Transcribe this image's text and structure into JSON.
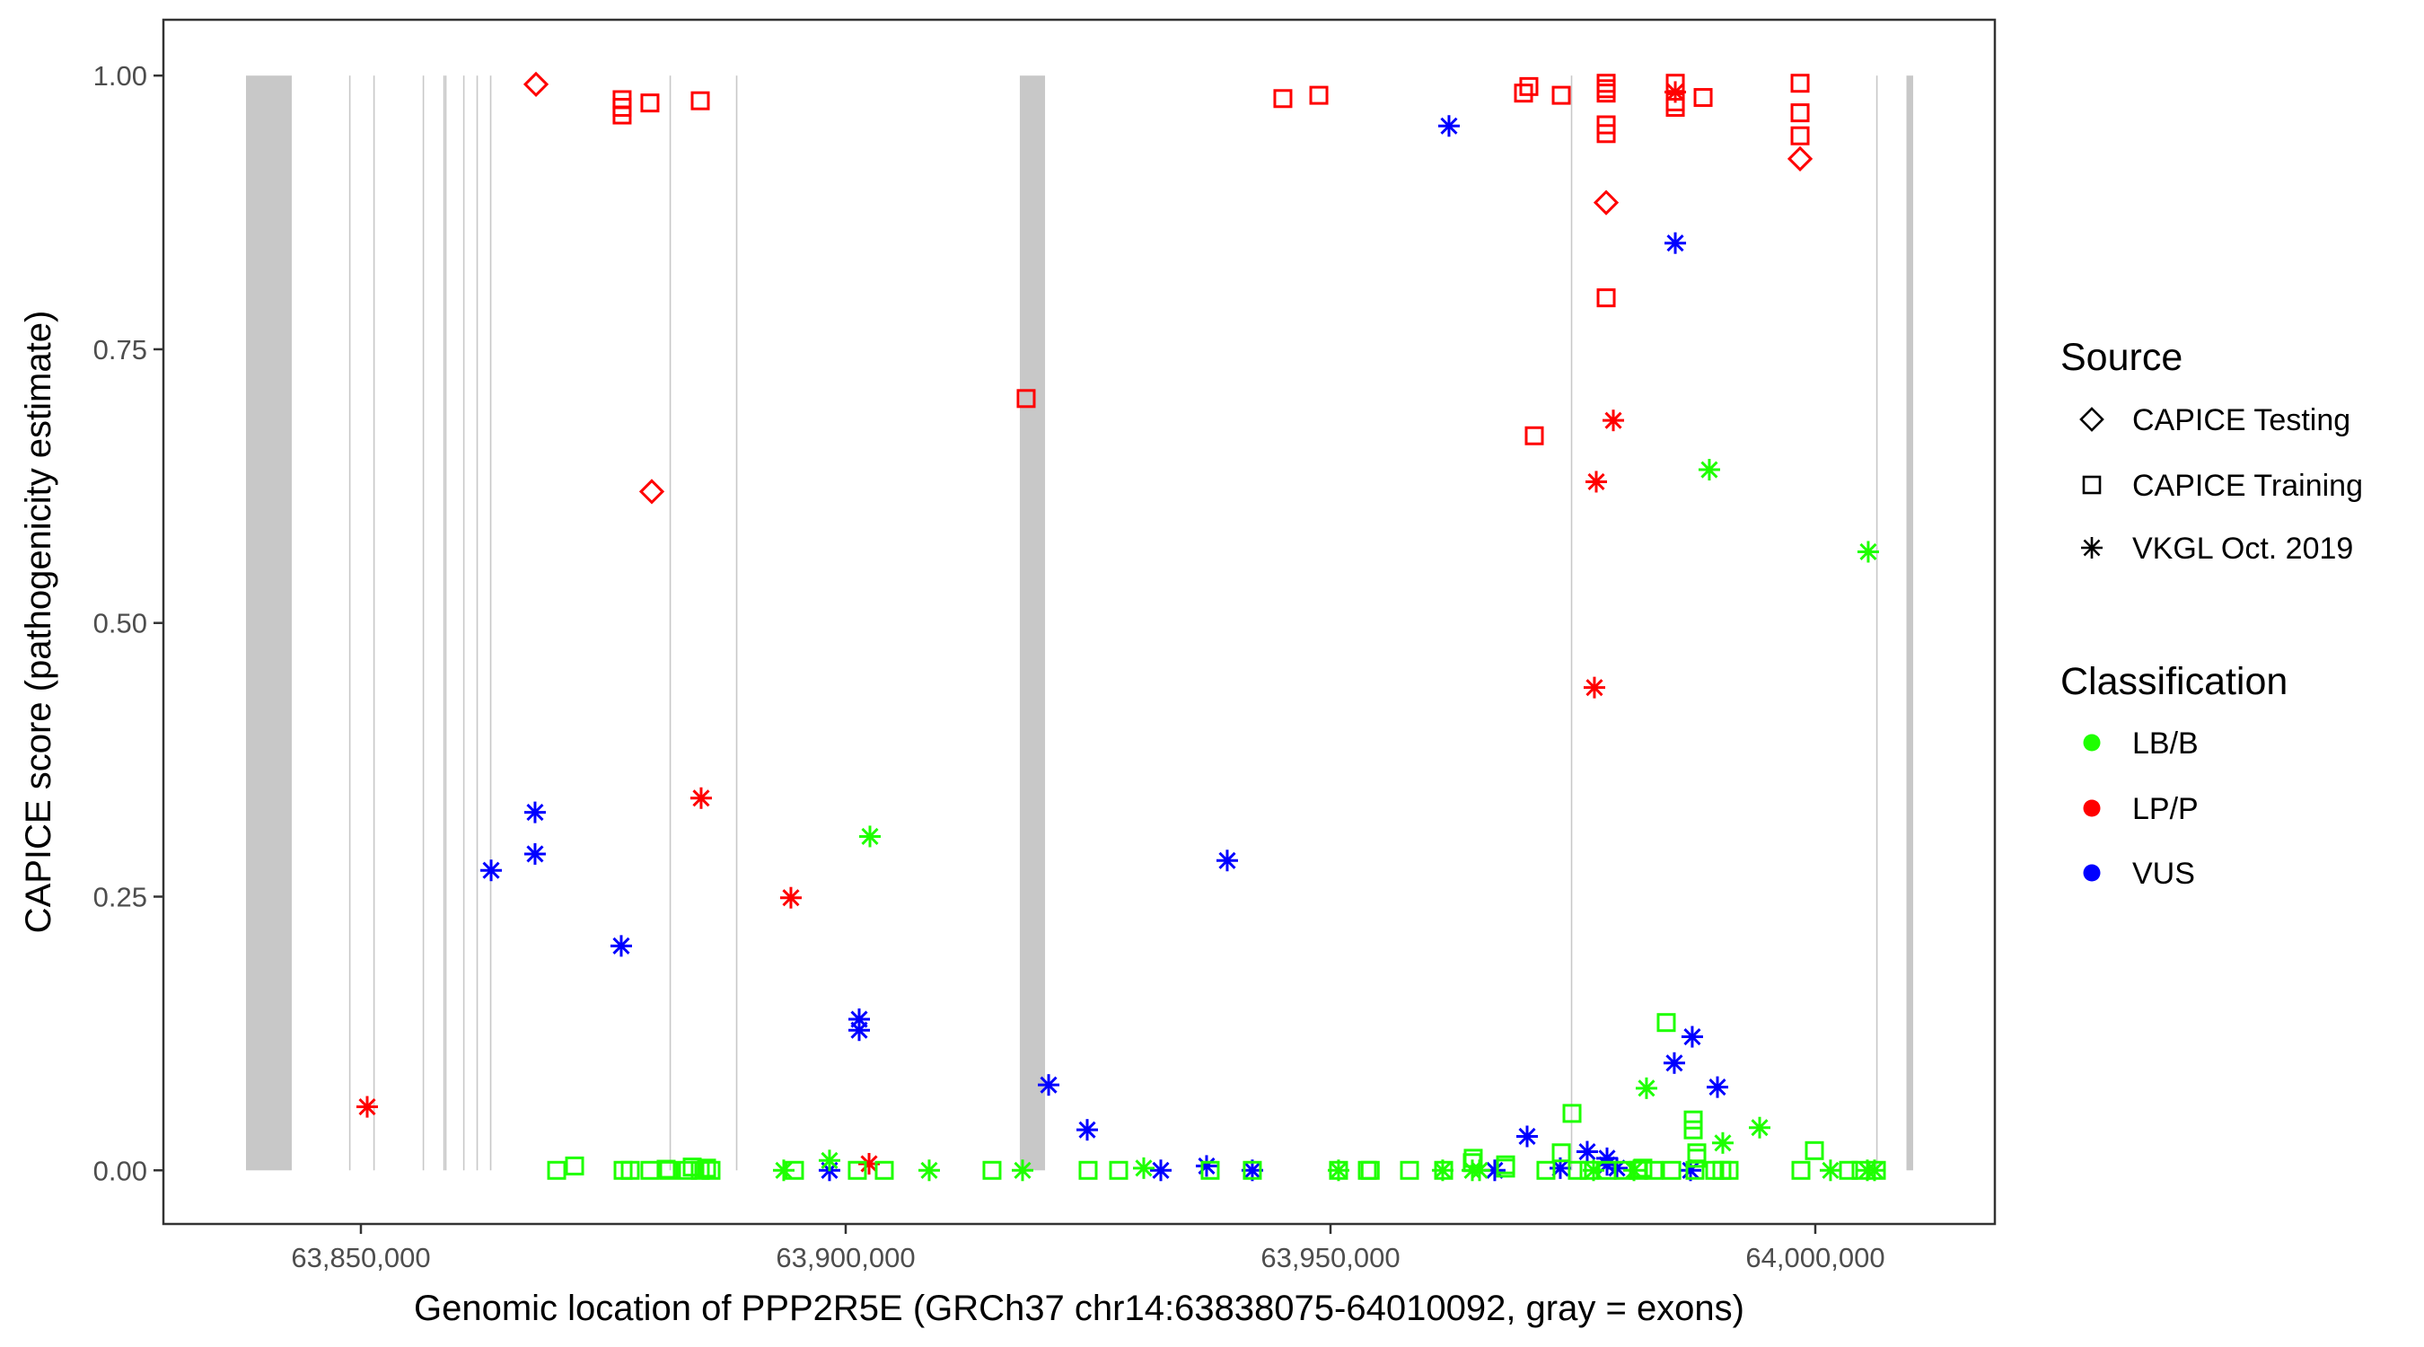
{
  "chart_data": {
    "type": "scatter",
    "title": "",
    "xlabel": "Genomic location of PPP2R5E (GRCh37 chr14:63838075-64010092, gray = exons)",
    "ylabel": "CAPICE score (pathogenicity estimate)",
    "xlim": [
      63829630,
      64018520
    ],
    "ylim": [
      -0.049,
      1.051
    ],
    "x_ticks": [
      63850000,
      63900000,
      63950000,
      64000000
    ],
    "x_tick_labels": [
      "63,850,000",
      "63,900,000",
      "63,950,000",
      "64,000,000"
    ],
    "y_ticks": [
      0,
      0.25,
      0.5,
      0.75,
      1.0
    ],
    "y_tick_labels": [
      "0.00",
      "0.25",
      "0.50",
      "0.75",
      "1.00"
    ],
    "grid": false,
    "exons": [
      [
        63838150,
        63842870
      ],
      [
        63848780,
        63848820
      ],
      [
        63851280,
        63851320
      ],
      [
        63856370,
        63856410
      ],
      [
        63858500,
        63858540
      ],
      [
        63858680,
        63858720
      ],
      [
        63860540,
        63860580
      ],
      [
        63861920,
        63861960
      ],
      [
        63863310,
        63863350
      ],
      [
        63881830,
        63881870
      ],
      [
        63888680,
        63888720
      ],
      [
        63917960,
        63920560
      ],
      [
        63974790,
        63974830
      ],
      [
        64006280,
        64006320
      ],
      [
        64009400,
        64010092
      ]
    ],
    "exon_color": "#c8c8c8",
    "legend_position": "right",
    "legends": [
      {
        "title": "Source",
        "items": [
          {
            "key": "T",
            "label": "CAPICE Testing",
            "shape": "diamond"
          },
          {
            "key": "R",
            "label": "CAPICE Training",
            "shape": "square"
          },
          {
            "key": "V",
            "label": "VKGL Oct. 2019",
            "shape": "asterisk"
          }
        ]
      },
      {
        "title": "Classification",
        "items": [
          {
            "key": "B",
            "label": "LB/B",
            "color": "#1eff00"
          },
          {
            "key": "P",
            "label": "LP/P",
            "color": "#ff0000"
          },
          {
            "key": "V",
            "label": "VUS",
            "color": "#0000ff"
          }
        ]
      }
    ],
    "point_fields": [
      "position",
      "score",
      "source",
      "classification"
    ],
    "points": [
      [
        63868060,
        0.992,
        "T",
        "P"
      ],
      [
        63880000,
        0.62,
        "T",
        "P"
      ],
      [
        63978430,
        0.884,
        "T",
        "P"
      ],
      [
        63998430,
        0.924,
        "T",
        "P"
      ],
      [
        63876940,
        0.978,
        "R",
        "P"
      ],
      [
        63876940,
        0.971,
        "R",
        "P"
      ],
      [
        63876940,
        0.964,
        "R",
        "P"
      ],
      [
        63879810,
        0.975,
        "R",
        "P"
      ],
      [
        63885000,
        0.977,
        "R",
        "P"
      ],
      [
        63945090,
        0.979,
        "R",
        "P"
      ],
      [
        63948800,
        0.982,
        "R",
        "P"
      ],
      [
        63918610,
        0.705,
        "R",
        "P"
      ],
      [
        63969910,
        0.984,
        "R",
        "P"
      ],
      [
        63970460,
        0.99,
        "R",
        "P"
      ],
      [
        63973800,
        0.982,
        "R",
        "P"
      ],
      [
        63971020,
        0.671,
        "R",
        "P"
      ],
      [
        63978430,
        0.993,
        "R",
        "P"
      ],
      [
        63978430,
        0.988,
        "R",
        "P"
      ],
      [
        63978430,
        0.984,
        "R",
        "P"
      ],
      [
        63978430,
        0.955,
        "R",
        "P"
      ],
      [
        63978430,
        0.947,
        "R",
        "P"
      ],
      [
        63978430,
        0.797,
        "R",
        "P"
      ],
      [
        63985560,
        0.993,
        "R",
        "P"
      ],
      [
        63985560,
        0.976,
        "R",
        "P"
      ],
      [
        63985560,
        0.971,
        "R",
        "P"
      ],
      [
        63988430,
        0.98,
        "R",
        "P"
      ],
      [
        63998430,
        0.993,
        "R",
        "P"
      ],
      [
        63998430,
        0.966,
        "R",
        "P"
      ],
      [
        63998430,
        0.945,
        "R",
        "P"
      ],
      [
        63850650,
        0.058,
        "V",
        "P"
      ],
      [
        63885090,
        0.34,
        "V",
        "P"
      ],
      [
        63894350,
        0.249,
        "V",
        "P"
      ],
      [
        63902410,
        0.006,
        "V",
        "P"
      ],
      [
        63985560,
        0.985,
        "V",
        "P"
      ],
      [
        63979170,
        0.685,
        "V",
        "P"
      ],
      [
        63977410,
        0.629,
        "V",
        "P"
      ],
      [
        63977220,
        0.441,
        "V",
        "P"
      ],
      [
        63863430,
        0.274,
        "V",
        "V"
      ],
      [
        63867960,
        0.327,
        "V",
        "V"
      ],
      [
        63867960,
        0.289,
        "V",
        "V"
      ],
      [
        63876850,
        0.205,
        "V",
        "V"
      ],
      [
        63901390,
        0.138,
        "V",
        "V"
      ],
      [
        63901390,
        0.128,
        "V",
        "V"
      ],
      [
        63898330,
        0.0,
        "V",
        "V"
      ],
      [
        63920930,
        0.078,
        "V",
        "V"
      ],
      [
        63924910,
        0.037,
        "V",
        "V"
      ],
      [
        63932500,
        0.0,
        "V",
        "V"
      ],
      [
        63937220,
        0.004,
        "V",
        "V"
      ],
      [
        63941940,
        0.0,
        "V",
        "V"
      ],
      [
        63962220,
        0.954,
        "V",
        "V"
      ],
      [
        63939350,
        0.283,
        "V",
        "V"
      ],
      [
        63985560,
        0.847,
        "V",
        "V"
      ],
      [
        63966940,
        0.0,
        "V",
        "V"
      ],
      [
        63970280,
        0.031,
        "V",
        "V"
      ],
      [
        63973700,
        0.002,
        "V",
        "V"
      ],
      [
        63976480,
        0.017,
        "V",
        "V"
      ],
      [
        63978520,
        0.011,
        "V",
        "V"
      ],
      [
        63978520,
        0.005,
        "V",
        "V"
      ],
      [
        63979540,
        0.002,
        "V",
        "V"
      ],
      [
        63985460,
        0.098,
        "V",
        "V"
      ],
      [
        63987310,
        0.122,
        "V",
        "V"
      ],
      [
        63989910,
        0.076,
        "V",
        "V"
      ],
      [
        63987130,
        0.0,
        "V",
        "V"
      ],
      [
        63902500,
        0.305,
        "V",
        "B"
      ],
      [
        63982590,
        0.075,
        "V",
        "B"
      ],
      [
        63989070,
        0.64,
        "V",
        "B"
      ],
      [
        64005460,
        0.565,
        "V",
        "B"
      ],
      [
        63994260,
        0.039,
        "V",
        "B"
      ],
      [
        63990460,
        0.025,
        "V",
        "B"
      ],
      [
        63893610,
        0.0,
        "V",
        "B"
      ],
      [
        63898330,
        0.009,
        "V",
        "B"
      ],
      [
        63908610,
        0.0,
        "V",
        "B"
      ],
      [
        63918240,
        0.0,
        "V",
        "B"
      ],
      [
        63930740,
        0.002,
        "V",
        "B"
      ],
      [
        63950830,
        0.0,
        "V",
        "B"
      ],
      [
        63961570,
        0.0,
        "V",
        "B"
      ],
      [
        63964630,
        0.0,
        "V",
        "B"
      ],
      [
        63965370,
        0.0,
        "V",
        "B"
      ],
      [
        63977130,
        0.0,
        "V",
        "B"
      ],
      [
        63981300,
        0.0,
        "V",
        "B"
      ],
      [
        64001570,
        0.0,
        "V",
        "B"
      ],
      [
        64005370,
        0.0,
        "V",
        "B"
      ],
      [
        64006110,
        0.0,
        "V",
        "B"
      ],
      [
        63870190,
        0.0,
        "R",
        "B"
      ],
      [
        63872040,
        0.004,
        "R",
        "B"
      ],
      [
        63877040,
        0.0,
        "R",
        "B"
      ],
      [
        63877780,
        0.0,
        "R",
        "B"
      ],
      [
        63879810,
        0.0,
        "R",
        "B"
      ],
      [
        63881480,
        0.001,
        "R",
        "B"
      ],
      [
        63881760,
        0.0,
        "R",
        "B"
      ],
      [
        63883700,
        0.0,
        "R",
        "B"
      ],
      [
        63884170,
        0.003,
        "R",
        "B"
      ],
      [
        63885000,
        0.0,
        "R",
        "B"
      ],
      [
        63885650,
        0.002,
        "R",
        "B"
      ],
      [
        63886110,
        0.0,
        "R",
        "B"
      ],
      [
        63894720,
        0.0,
        "R",
        "B"
      ],
      [
        63901200,
        0.0,
        "R",
        "B"
      ],
      [
        63903980,
        0.0,
        "R",
        "B"
      ],
      [
        63915090,
        0.0,
        "R",
        "B"
      ],
      [
        63925000,
        0.0,
        "R",
        "B"
      ],
      [
        63928150,
        0.0,
        "R",
        "B"
      ],
      [
        63937590,
        0.0,
        "R",
        "B"
      ],
      [
        63941940,
        0.0,
        "R",
        "B"
      ],
      [
        63950830,
        0.0,
        "R",
        "B"
      ],
      [
        63953800,
        0.0,
        "R",
        "B"
      ],
      [
        63954100,
        0.0,
        "R",
        "B"
      ],
      [
        63958150,
        0.0,
        "R",
        "B"
      ],
      [
        63961670,
        0.0,
        "R",
        "B"
      ],
      [
        63964630,
        0.007,
        "R",
        "B"
      ],
      [
        63968060,
        0.005,
        "R",
        "B"
      ],
      [
        63968060,
        0.002,
        "R",
        "B"
      ],
      [
        63972220,
        0.0,
        "R",
        "B"
      ],
      [
        63975460,
        0.0,
        "R",
        "B"
      ],
      [
        63976670,
        0.0,
        "R",
        "B"
      ],
      [
        63978520,
        0.0,
        "R",
        "B"
      ],
      [
        63980190,
        0.0,
        "R",
        "B"
      ],
      [
        63981760,
        0.0,
        "R",
        "B"
      ],
      [
        63982220,
        0.002,
        "R",
        "B"
      ],
      [
        63983330,
        0.0,
        "R",
        "B"
      ],
      [
        63985190,
        0.0,
        "R",
        "B"
      ],
      [
        63987590,
        0.0,
        "R",
        "B"
      ],
      [
        63989630,
        0.0,
        "R",
        "B"
      ],
      [
        63990370,
        0.0,
        "R",
        "B"
      ],
      [
        63991110,
        0.0,
        "R",
        "B"
      ],
      [
        63998520,
        0.0,
        "R",
        "B"
      ],
      [
        64003430,
        0.0,
        "R",
        "B"
      ],
      [
        64004720,
        0.0,
        "R",
        "B"
      ],
      [
        64006300,
        0.0,
        "R",
        "B"
      ],
      [
        63974910,
        0.052,
        "R",
        "B"
      ],
      [
        63984630,
        0.135,
        "R",
        "B"
      ],
      [
        63987410,
        0.046,
        "R",
        "B"
      ],
      [
        63987410,
        0.037,
        "R",
        "B"
      ],
      [
        63987780,
        0.016,
        "R",
        "B"
      ],
      [
        63987780,
        0.011,
        "R",
        "B"
      ],
      [
        63999910,
        0.018,
        "R",
        "B"
      ],
      [
        63973800,
        0.016,
        "R",
        "B"
      ],
      [
        63964720,
        0.011,
        "R",
        "B"
      ]
    ]
  }
}
